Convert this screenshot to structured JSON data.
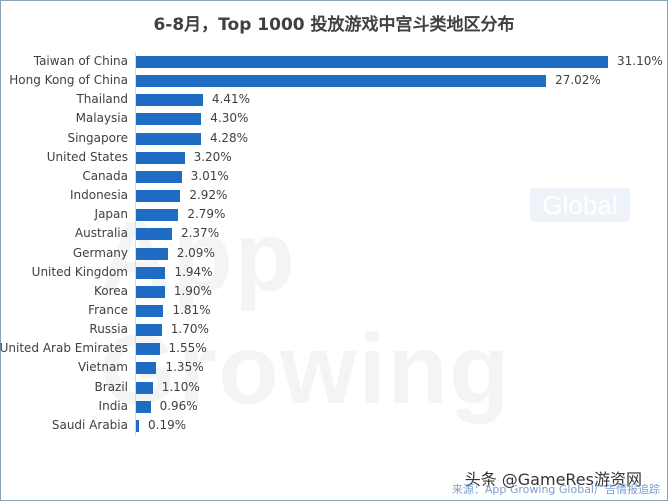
{
  "title": "6-8月，Top 1000 投放游戏中宫斗类地区分布",
  "watermark": {
    "text": "App Growing",
    "badge": "Global"
  },
  "footer": {
    "credit": "头条 @GameRes游资网",
    "source": "来源：App Growing Global广告情报追踪"
  },
  "colors": {
    "bar": "#1f6dc2",
    "text": "#404040",
    "border": "#8aa4b4"
  },
  "chart_data": {
    "type": "bar",
    "orientation": "horizontal",
    "title": "6-8月，Top 1000 投放游戏中宫斗类地区分布",
    "xlabel": "",
    "ylabel": "",
    "value_format": "percent",
    "grid": false,
    "legend": null,
    "categories": [
      "Taiwan of China",
      "Hong Kong of China",
      "Thailand",
      "Malaysia",
      "Singapore",
      "United States",
      "Canada",
      "Indonesia",
      "Japan",
      "Australia",
      "Germany",
      "United Kingdom",
      "Korea",
      "France",
      "Russia",
      "United Arab Emirates",
      "Vietnam",
      "Brazil",
      "India",
      "Saudi Arabia"
    ],
    "values": [
      31.1,
      27.02,
      4.41,
      4.3,
      4.28,
      3.2,
      3.01,
      2.92,
      2.79,
      2.37,
      2.09,
      1.94,
      1.9,
      1.81,
      1.7,
      1.55,
      1.35,
      1.1,
      0.96,
      0.19
    ],
    "labels": [
      "31.10%",
      "27.02%",
      "4.41%",
      "4.30%",
      "4.28%",
      "3.20%",
      "3.01%",
      "2.92%",
      "2.79%",
      "2.37%",
      "2.09%",
      "1.94%",
      "1.90%",
      "1.81%",
      "1.70%",
      "1.55%",
      "1.35%",
      "1.10%",
      "0.96%",
      "0.19%"
    ],
    "xlim": [
      0,
      31.1
    ]
  }
}
